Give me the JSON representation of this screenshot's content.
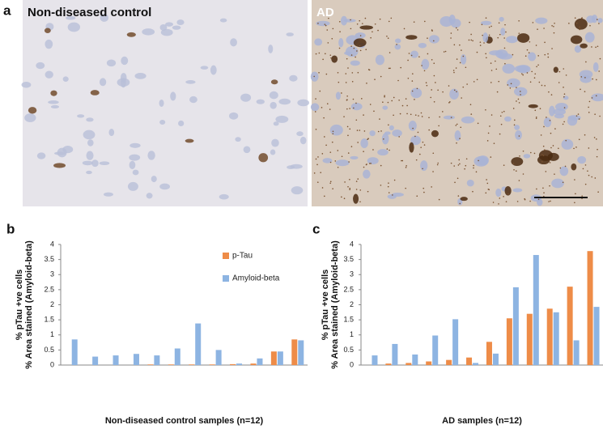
{
  "figure": {
    "panel_labels": [
      "a",
      "b",
      "c"
    ],
    "image_labels": [
      "Non-diseased control",
      "AD"
    ]
  },
  "chart_data": [
    {
      "type": "bar",
      "x_label": "Non-diseased control samples (n=12)",
      "y_label": [
        "% pTau +ve cells",
        "% Area stained (Amyloid-beta)"
      ],
      "ylim": [
        0,
        4
      ],
      "yticks": [
        0,
        0.5,
        1,
        1.5,
        2,
        2.5,
        3,
        3.5,
        4
      ],
      "legend": "upper right",
      "series": [
        {
          "name": "p-Tau",
          "color": "#ee8c48",
          "values": [
            0,
            0,
            0,
            0,
            0.02,
            0.02,
            0.02,
            0.02,
            0.03,
            0.05,
            0.45,
            0.85
          ]
        },
        {
          "name": "Amyloid-beta",
          "color": "#8db4e2",
          "values": [
            0.85,
            0.28,
            0.32,
            0.37,
            0.32,
            0.55,
            1.38,
            0.5,
            0.05,
            0.22,
            0.45,
            0.82
          ]
        }
      ]
    },
    {
      "type": "bar",
      "x_label": "AD samples (n=12)",
      "y_label": [
        "% pTau +ve cells",
        "% Area stained (Amyloid-beta)"
      ],
      "ylim": [
        0,
        4
      ],
      "yticks": [
        0,
        0.5,
        1,
        1.5,
        2,
        2.5,
        3,
        3.5,
        4
      ],
      "series": [
        {
          "color": "#ee8c48",
          "values": [
            0,
            0.05,
            0.07,
            0.12,
            0.17,
            0.25,
            0.77,
            1.55,
            1.7,
            1.87,
            2.6,
            3.78
          ]
        },
        {
          "color": "#8db4e2",
          "values": [
            0.32,
            0.7,
            0.35,
            0.98,
            1.52,
            0.07,
            0.38,
            2.58,
            3.65,
            1.75,
            0.82,
            1.93
          ]
        }
      ]
    }
  ]
}
